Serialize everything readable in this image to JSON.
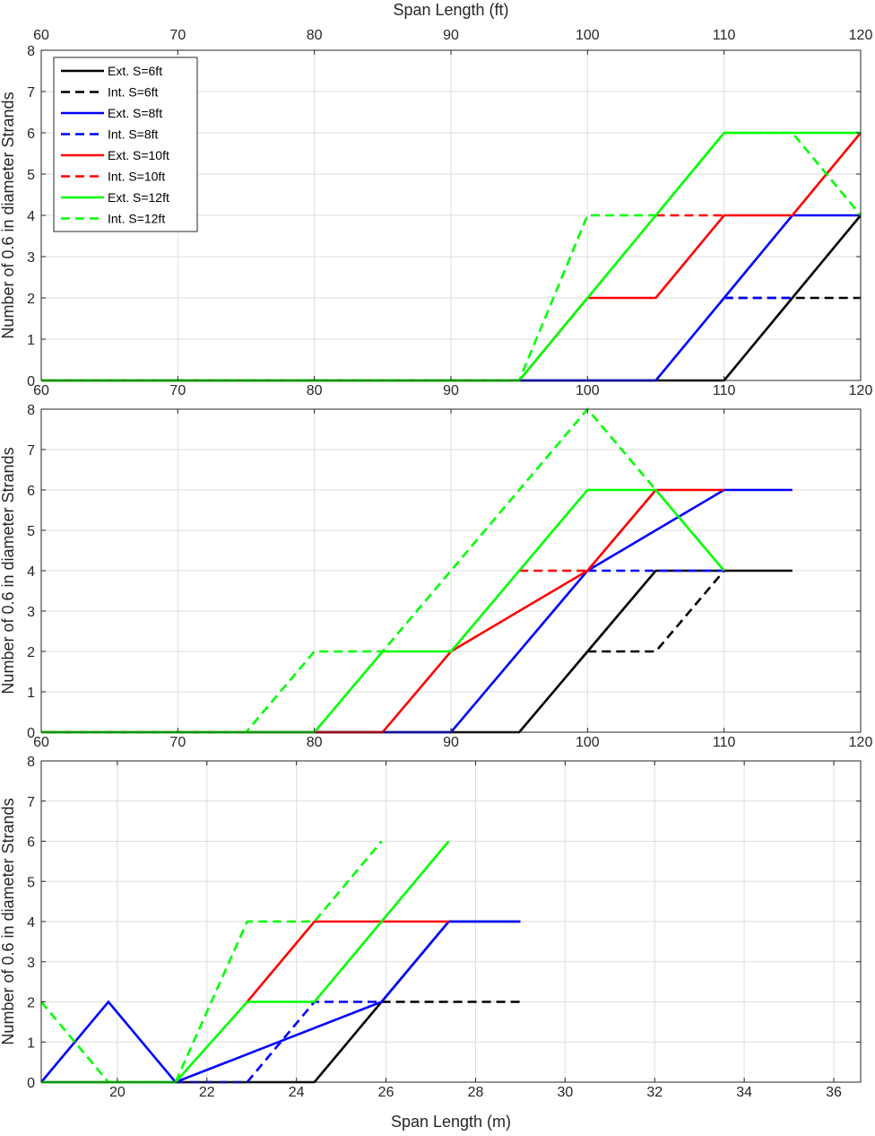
{
  "chart_data": [
    {
      "type": "line",
      "top_xlabel": "Span Length (ft)",
      "ylabel": "Number of 0.6 in diameter Strands",
      "xlim": [
        60,
        120
      ],
      "ylim": [
        0,
        8
      ],
      "xticks": [
        "60",
        "70",
        "80",
        "90",
        "100",
        "110",
        "120"
      ],
      "yticks": [
        "0",
        "1",
        "2",
        "3",
        "4",
        "5",
        "6",
        "7",
        "8"
      ],
      "grid": true,
      "legend_position": "top-left",
      "series": [
        {
          "name": "Ext. S=6ft",
          "color": "#000000",
          "dash": "solid",
          "x": [
            60,
            110,
            115,
            120
          ],
          "y": [
            0,
            0,
            2,
            4
          ]
        },
        {
          "name": "Int. S=6ft",
          "color": "#000000",
          "dash": "dashed",
          "x": [
            110,
            115,
            120
          ],
          "y": [
            2,
            2,
            2
          ]
        },
        {
          "name": "Ext. S=8ft",
          "color": "#0000ff",
          "dash": "solid",
          "x": [
            60,
            105,
            110,
            115,
            120
          ],
          "y": [
            0,
            0,
            2,
            4,
            4
          ]
        },
        {
          "name": "Int. S=8ft",
          "color": "#0000ff",
          "dash": "dashed",
          "x": [
            110,
            115
          ],
          "y": [
            2,
            2
          ]
        },
        {
          "name": "Ext. S=10ft",
          "color": "#ff0000",
          "dash": "solid",
          "x": [
            60,
            95,
            100,
            105,
            110,
            115,
            120
          ],
          "y": [
            0,
            0,
            2,
            2,
            4,
            4,
            6
          ]
        },
        {
          "name": "Int. S=10ft",
          "color": "#ff0000",
          "dash": "dashed",
          "x": [
            105,
            110
          ],
          "y": [
            4,
            4
          ]
        },
        {
          "name": "Ext. S=12ft",
          "color": "#00ff00",
          "dash": "solid",
          "x": [
            60,
            95,
            110,
            120
          ],
          "y": [
            0,
            0,
            6,
            6
          ]
        },
        {
          "name": "Int. S=12ft",
          "color": "#00ff00",
          "dash": "dashed",
          "x": [
            60,
            95,
            100,
            105,
            110,
            115,
            120
          ],
          "y": [
            0,
            0,
            4,
            4,
            6,
            6,
            4
          ]
        }
      ]
    },
    {
      "type": "line",
      "ylabel": "Number of 0.6 in diameter Strands",
      "xlim": [
        60,
        120
      ],
      "ylim": [
        0,
        8
      ],
      "xticks": [
        "60",
        "70",
        "80",
        "90",
        "100",
        "110",
        "120"
      ],
      "yticks": [
        "0",
        "1",
        "2",
        "3",
        "4",
        "5",
        "6",
        "7",
        "8"
      ],
      "grid": true,
      "series": [
        {
          "name": "Ext. S=6ft",
          "color": "#000000",
          "dash": "solid",
          "x": [
            60,
            95,
            105,
            115
          ],
          "y": [
            0,
            0,
            4,
            4
          ]
        },
        {
          "name": "Int. S=6ft",
          "color": "#000000",
          "dash": "dashed",
          "x": [
            100,
            105,
            110
          ],
          "y": [
            2,
            2,
            4
          ]
        },
        {
          "name": "Ext. S=8ft",
          "color": "#0000ff",
          "dash": "solid",
          "x": [
            60,
            90,
            100,
            110,
            115
          ],
          "y": [
            0,
            0,
            4,
            6,
            6
          ]
        },
        {
          "name": "Int. S=8ft",
          "color": "#0000ff",
          "dash": "dashed",
          "x": [
            100,
            110
          ],
          "y": [
            4,
            4
          ]
        },
        {
          "name": "Ext. S=10ft",
          "color": "#ff0000",
          "dash": "solid",
          "x": [
            60,
            85,
            90,
            100,
            105,
            110
          ],
          "y": [
            0,
            0,
            2,
            4,
            6,
            6
          ]
        },
        {
          "name": "Int. S=10ft",
          "color": "#ff0000",
          "dash": "dashed",
          "x": [
            95,
            100,
            105
          ],
          "y": [
            4,
            4,
            6
          ]
        },
        {
          "name": "Ext. S=12ft",
          "color": "#00ff00",
          "dash": "solid",
          "x": [
            60,
            80,
            85,
            90,
            100,
            105,
            110
          ],
          "y": [
            0,
            0,
            2,
            2,
            6,
            6,
            4
          ]
        },
        {
          "name": "Int. S=12ft",
          "color": "#00ff00",
          "dash": "dashed",
          "x": [
            60,
            75,
            80,
            85,
            100,
            105
          ],
          "y": [
            0,
            0,
            2,
            2,
            8,
            6
          ]
        }
      ]
    },
    {
      "type": "line",
      "xlabel": "Span Length (m)",
      "ylabel": "Number of 0.6 in diameter Strands",
      "xlim": [
        18.3,
        36.6
      ],
      "ylim": [
        0,
        8
      ],
      "xticks": [
        "20",
        "22",
        "24",
        "26",
        "28",
        "30",
        "32",
        "34",
        "36"
      ],
      "yticks": [
        "0",
        "1",
        "2",
        "3",
        "4",
        "5",
        "6",
        "7",
        "8"
      ],
      "grid": true,
      "series": [
        {
          "name": "Ext. S=6ft",
          "color": "#000000",
          "dash": "solid",
          "x": [
            18.3,
            24.4,
            27.4,
            29.0
          ],
          "y": [
            0,
            0,
            4,
            4
          ]
        },
        {
          "name": "Int. S=6ft",
          "color": "#000000",
          "dash": "dashed",
          "x": [
            25.9,
            29.0
          ],
          "y": [
            2,
            2
          ]
        },
        {
          "name": "Ext. S=8ft",
          "color": "#0000ff",
          "dash": "solid",
          "x": [
            18.3,
            19.8,
            21.3,
            25.9,
            27.4,
            29.0
          ],
          "y": [
            0,
            2,
            0,
            2,
            4,
            4
          ]
        },
        {
          "name": "Int. S=8ft",
          "color": "#0000ff",
          "dash": "dashed",
          "x": [
            21.3,
            22.9,
            24.4,
            25.9
          ],
          "y": [
            0,
            0,
            2,
            2
          ]
        },
        {
          "name": "Ext. S=10ft",
          "color": "#ff0000",
          "dash": "solid",
          "x": [
            22.9,
            24.4,
            27.4
          ],
          "y": [
            2,
            4,
            4
          ]
        },
        {
          "name": "Int. S=10ft",
          "color": "#ff0000",
          "dash": "dashed",
          "x": [],
          "y": []
        },
        {
          "name": "Ext. S=12ft",
          "color": "#00ff00",
          "dash": "solid",
          "x": [
            18.3,
            21.3,
            22.9,
            24.4,
            27.4
          ],
          "y": [
            0,
            0,
            2,
            2,
            6
          ]
        },
        {
          "name": "Int. S=12ft",
          "color": "#00ff00",
          "dash": "dashed",
          "x": [
            18.3,
            19.8,
            21.3,
            22.9,
            24.4,
            25.9
          ],
          "y": [
            2,
            0,
            0,
            4,
            4,
            6
          ]
        }
      ]
    }
  ]
}
